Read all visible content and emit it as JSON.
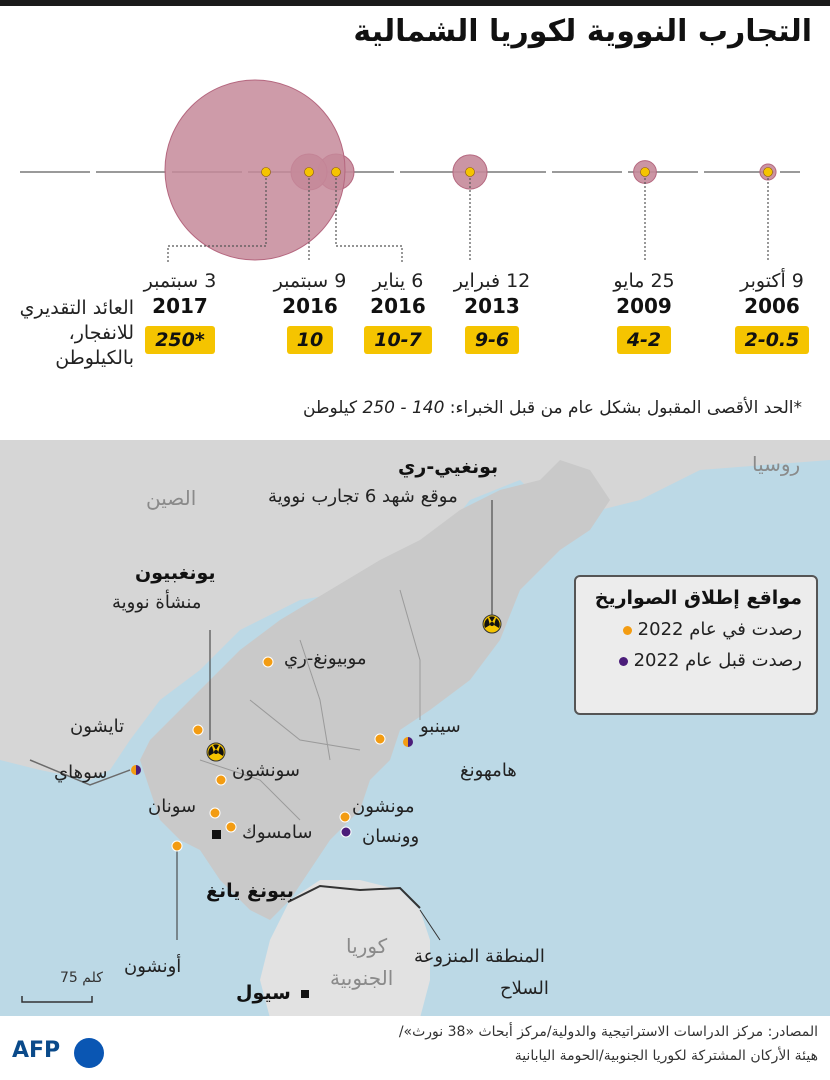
{
  "title": "التجارب النووية لكوريا الشمالية",
  "yield_label": "العائد التقديري للانفجار، بالكيلوطن",
  "footnote": {
    "prefix": "*الحد الأقصى المقبول بشكل عام من قبل الخبراء:",
    "range": "140 - 250",
    "unit": "كيلوطن"
  },
  "tests": [
    {
      "date": "9 أكتوبر",
      "year": "2006",
      "yield": "2-0.5",
      "max_kt": 2
    },
    {
      "date": "25 مايو",
      "year": "2009",
      "yield": "4-2",
      "max_kt": 4
    },
    {
      "date": "12 فبراير",
      "year": "2013",
      "yield": "9-6",
      "max_kt": 9
    },
    {
      "date": "6 يناير",
      "year": "2016",
      "yield": "10-7",
      "max_kt": 10
    },
    {
      "date": "9 سبتمبر",
      "year": "2016",
      "yield": "10",
      "max_kt": 10
    },
    {
      "date": "3 سبتمبر",
      "year": "2017",
      "yield": "*250",
      "max_kt": 250
    }
  ],
  "map": {
    "countries": {
      "russia": "روسيا",
      "china": "الصين",
      "south_korea_1": "كوريا",
      "south_korea_2": "الجنوبية"
    },
    "punggye_title": "بونغيي-ري",
    "punggye_desc": "موقع شهد 6 تجارب نووية",
    "yongbyon_title": "يونغبيون",
    "yongbyon_desc": "منشأة نووية",
    "pyongyang": "بيونغ يانغ",
    "seoul": "سيول",
    "dmz_1": "المنطقة المنزوعة",
    "dmz_2": "السلاح",
    "sites": {
      "mubyong": "موبيونغ-ري",
      "taechon": "تايشون",
      "sohae": "سوهاي",
      "sunchon": "سونشون",
      "sunan": "سونان",
      "samsok": "سامسوك",
      "onchon": "أونشون",
      "sinpo": "سينبو",
      "hamhung": "هامهونغ",
      "munchon": "مونشون",
      "wonsan": "وونسان"
    },
    "scale": "75 كلم"
  },
  "legend": {
    "title": "مواقع إطلاق الصواريخ",
    "item_2022": "رصدت في عام 2022",
    "item_before": "رصدت قبل عام 2022"
  },
  "sources": {
    "line1": "المصادر: مركز الدراسات الاستراتيجية والدولية/مركز أبحاث «38 نورث»/",
    "line2": "هيئة الأركان المشتركة لكوريا الجنوبية/الحومة اليابانية"
  },
  "brand": "AFP",
  "colors": {
    "bubble": "#b5677f",
    "bubble_fill": "#c58a9a",
    "yield_badge": "#f5c400",
    "sea": "#bcd9e6",
    "land": "#d6d6d6",
    "dot_2022": "#f39c12",
    "dot_before": "#4b1d7a"
  }
}
